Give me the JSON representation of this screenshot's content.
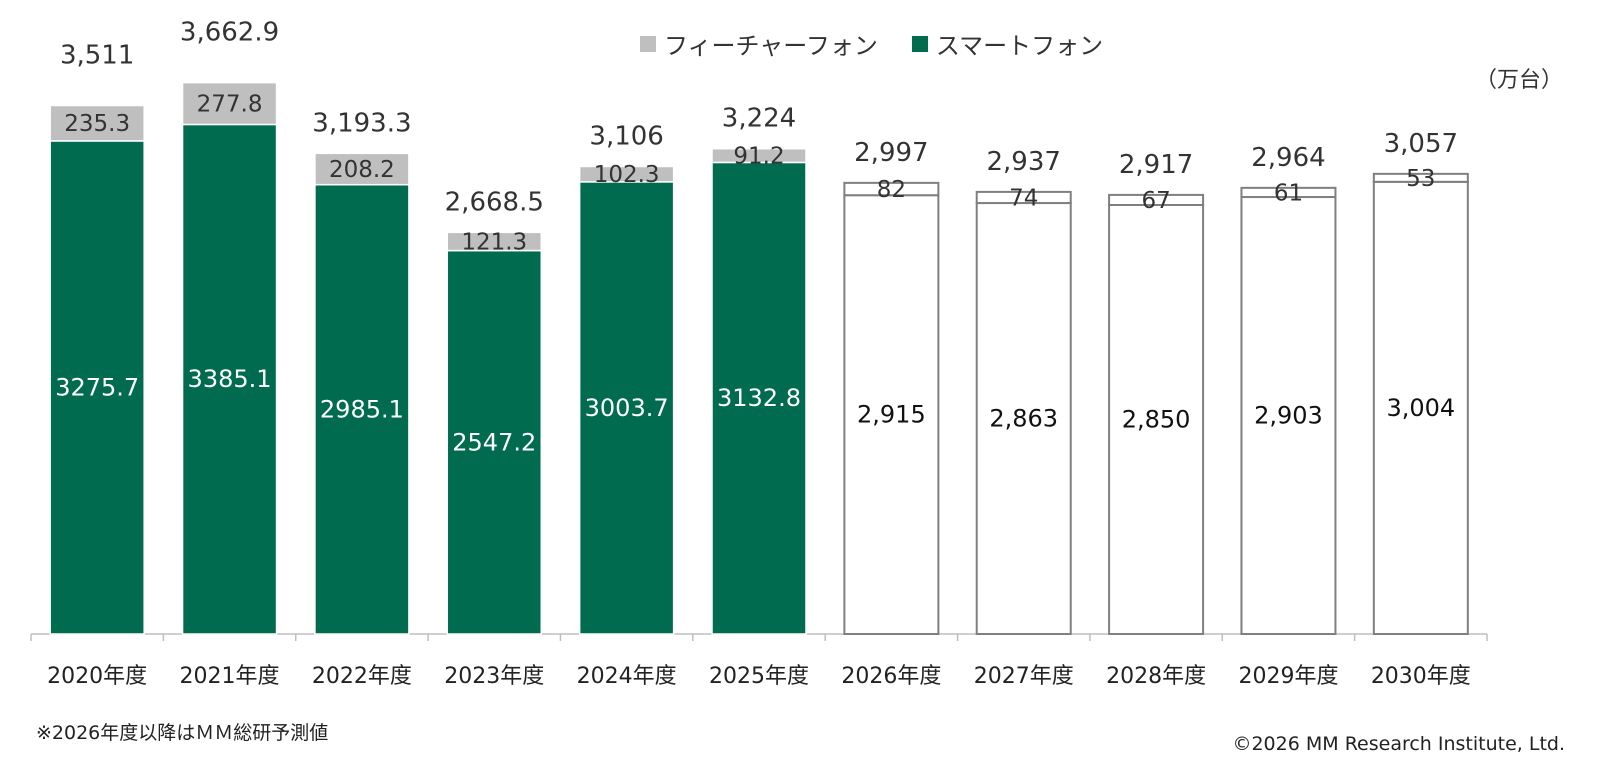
{
  "legend": {
    "feature_label": "フィーチャーフォン",
    "smart_label": "スマートフォン"
  },
  "unit": "（万台）",
  "footnote": "※2026年度以降はＭＭ総研予測値",
  "copyright": "©2026 MM Research Institute, Ltd.",
  "colors": {
    "smartphone": "#006B4F",
    "feature_phone": "#BFBFBF",
    "forecast_fill": "#FFFFFF",
    "forecast_stroke": "#7F7F7F",
    "axis": "#BFBFBF"
  },
  "chart_data": {
    "type": "bar",
    "stacked": true,
    "categories": [
      "2020年度",
      "2021年度",
      "2022年度",
      "2023年度",
      "2024年度",
      "2025年度",
      "2026年度",
      "2027年度",
      "2028年度",
      "2029年度",
      "2030年度"
    ],
    "series": [
      {
        "name": "スマートフォン",
        "values": [
          3275.7,
          3385.1,
          2985.1,
          2547.2,
          3003.7,
          3132.8,
          2915,
          2863,
          2850,
          2903,
          3004
        ],
        "labels": [
          "3275.7",
          "3385.1",
          "2985.1",
          "2547.2",
          "3003.7",
          "3132.8",
          "2,915",
          "2,863",
          "2,850",
          "2,903",
          "3,004"
        ]
      },
      {
        "name": "フィーチャーフォン",
        "values": [
          235.3,
          277.8,
          208.2,
          121.3,
          102.3,
          91.2,
          82,
          74,
          67,
          61,
          53
        ],
        "labels": [
          "235.3",
          "277.8",
          "208.2",
          "121.3",
          "102.3",
          "91.2",
          "82",
          "74",
          "67",
          "61",
          "53"
        ]
      }
    ],
    "totals": [
      3511,
      3662.9,
      3193.3,
      2668.5,
      3106,
      3224,
      2997,
      2937,
      2917,
      2964,
      3057
    ],
    "total_labels": [
      "3,511",
      "3,662.9",
      "3,193.3",
      "2,668.5",
      "3,106",
      "3,224",
      "2,997",
      "2,937",
      "2,917",
      "2,964",
      "3,057"
    ],
    "forecast_categories": [
      "2026年度",
      "2027年度",
      "2028年度",
      "2029年度",
      "2030年度"
    ],
    "ylim": [
      0,
      3800
    ],
    "grid": false,
    "legend_position": "top-center"
  }
}
